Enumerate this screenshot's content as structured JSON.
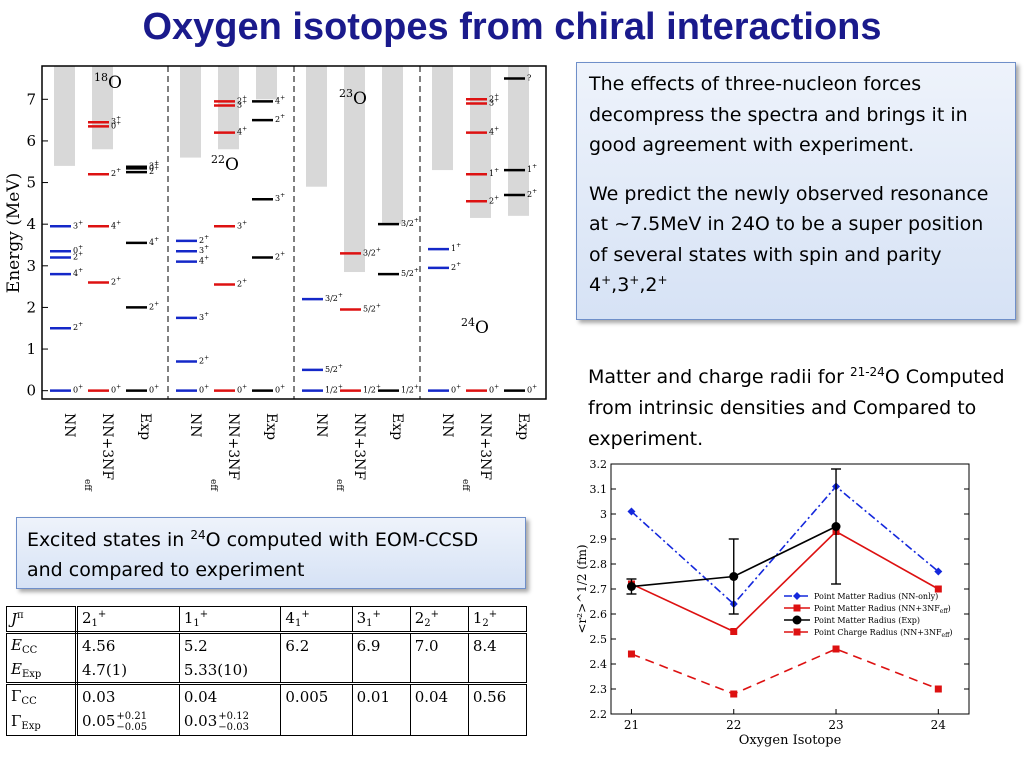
{
  "title": "Oxygen isotopes from chiral interactions",
  "box1": {
    "p1": "The effects of three-nucleon forces decompress the spectra and brings it in good agreement with experiment.",
    "p2_pre": "We predict the newly observed resonance at ~7.5MeV in 24O to be a super position of several states with spin and parity 4",
    "p2_mid1": ",3",
    "p2_mid2": ",2",
    "p2_sup": "+"
  },
  "radii_text": {
    "pre": "Matter and charge radii for ",
    "sup": "21-24",
    "post": "O Computed from intrinsic densities and Compared to experiment."
  },
  "box2": {
    "pre": "Excited states in ",
    "sup": "24",
    "post": "O computed with EOM-CCSD and compared to experiment"
  },
  "table": {
    "header": {
      "label": "J",
      "label_sup": "π",
      "cols": [
        [
          "2",
          "1",
          "+"
        ],
        [
          "1",
          "1",
          "+"
        ],
        [
          "4",
          "1",
          "+"
        ],
        [
          "3",
          "1",
          "+"
        ],
        [
          "2",
          "2",
          "+"
        ],
        [
          "1",
          "2",
          "+"
        ]
      ]
    },
    "ecc": {
      "label": "E",
      "sub": "CC",
      "values": [
        "4.56",
        "5.2",
        "6.2",
        "6.9",
        "7.0",
        "8.4"
      ]
    },
    "eexp": {
      "label": "E",
      "sub": "Exp",
      "values": [
        "4.7(1)",
        "5.33(10)",
        "",
        "",
        "",
        ""
      ]
    },
    "gcc": {
      "label": "Γ",
      "sub": "CC",
      "values": [
        "0.03",
        "0.04",
        "0.005",
        "0.01",
        "0.04",
        "0.56"
      ]
    },
    "gexp": {
      "label": "Γ",
      "sub": "Exp",
      "values": [
        [
          "0.05",
          "+0.21",
          "−0.05"
        ],
        [
          "0.03",
          "+0.12",
          "−0.03"
        ],
        [
          "",
          "",
          ""
        ],
        [
          "",
          "",
          ""
        ],
        [
          "",
          "",
          ""
        ],
        [
          "",
          "",
          ""
        ]
      ]
    }
  },
  "colors": {
    "title": "#1a1a8c",
    "nn": "#1428c8",
    "nn3nf": "#dd1111",
    "exp": "#000000",
    "band": "#d8d8d8",
    "nnonly": "#1428dc",
    "radius_red": "#dd1111"
  },
  "chart_data": [
    {
      "type": "level-scheme",
      "ylabel": "Energy (MeV)",
      "ylim": [
        -0.2,
        7.8
      ],
      "yticks": [
        0,
        1,
        2,
        3,
        4,
        5,
        6,
        7
      ],
      "panels": [
        {
          "isotope": "18",
          "element": "O",
          "columns": [
            {
              "name": "NN",
              "color": "nn",
              "band": [
                5.4,
                7.8
              ],
              "levels": [
                [
                  0,
                  "0+"
                ],
                [
                  1.5,
                  "2+"
                ],
                [
                  2.8,
                  "4+"
                ],
                [
                  3.2,
                  "2+"
                ],
                [
                  3.35,
                  "0+"
                ],
                [
                  3.95,
                  "3+"
                ]
              ]
            },
            {
              "name": "NN+3NF",
              "sub": "eff",
              "color": "nn3nf",
              "band": [
                5.8,
                7.8
              ],
              "levels": [
                [
                  0,
                  "0+"
                ],
                [
                  2.6,
                  "2+"
                ],
                [
                  3.95,
                  "4+"
                ],
                [
                  5.2,
                  "2+"
                ],
                [
                  6.35,
                  "0+"
                ],
                [
                  6.45,
                  "3+"
                ]
              ]
            },
            {
              "name": "Exp",
              "color": "exp",
              "levels": [
                [
                  0,
                  "0+"
                ],
                [
                  2.0,
                  "2+"
                ],
                [
                  3.55,
                  "4+"
                ],
                [
                  5.25,
                  "2+"
                ],
                [
                  5.34,
                  "0+"
                ],
                [
                  5.38,
                  "3+"
                ]
              ]
            }
          ]
        },
        {
          "isotope": "22",
          "element": "O",
          "columns": [
            {
              "name": "NN",
              "color": "nn",
              "band": [
                5.6,
                7.8
              ],
              "levels": [
                [
                  0,
                  "0+"
                ],
                [
                  0.7,
                  "2+"
                ],
                [
                  1.75,
                  "3+"
                ],
                [
                  3.1,
                  "4+"
                ],
                [
                  3.35,
                  "3+"
                ],
                [
                  3.6,
                  "2+"
                ]
              ]
            },
            {
              "name": "NN+3NF",
              "sub": "eff",
              "color": "nn3nf",
              "band": [
                5.8,
                7.8
              ],
              "levels": [
                [
                  0,
                  "0+"
                ],
                [
                  2.55,
                  "2+"
                ],
                [
                  3.95,
                  "3+"
                ],
                [
                  6.2,
                  "4+"
                ],
                [
                  6.85,
                  "3+"
                ],
                [
                  6.95,
                  "2+"
                ]
              ]
            },
            {
              "name": "Exp",
              "color": "exp",
              "band": [
                7.0,
                7.8
              ],
              "levels": [
                [
                  0,
                  "0+"
                ],
                [
                  3.2,
                  "2+"
                ],
                [
                  4.6,
                  "3+"
                ],
                [
                  6.5,
                  "2+"
                ],
                [
                  6.95,
                  "4+"
                ]
              ]
            }
          ]
        },
        {
          "isotope": "23",
          "element": "O",
          "columns": [
            {
              "name": "NN",
              "color": "nn",
              "band": [
                4.9,
                7.8
              ],
              "levels": [
                [
                  0,
                  "1/2+"
                ],
                [
                  0.5,
                  "5/2+"
                ],
                [
                  2.2,
                  "3/2+"
                ]
              ]
            },
            {
              "name": "NN+3NF",
              "sub": "eff",
              "color": "nn3nf",
              "band": [
                2.85,
                7.8
              ],
              "levels": [
                [
                  0,
                  "1/2+"
                ],
                [
                  1.95,
                  "5/2+"
                ],
                [
                  3.3,
                  "3/2+"
                ]
              ]
            },
            {
              "name": "Exp",
              "color": "exp",
              "band": [
                4.0,
                7.8
              ],
              "levels": [
                [
                  0,
                  "1/2+"
                ],
                [
                  2.8,
                  "5/2+"
                ],
                [
                  4.0,
                  "3/2+"
                ]
              ]
            }
          ]
        },
        {
          "isotope": "24",
          "element": "O",
          "columns": [
            {
              "name": "NN",
              "color": "nn",
              "band": [
                5.3,
                7.8
              ],
              "levels": [
                [
                  0,
                  "0+"
                ],
                [
                  2.95,
                  "2+"
                ],
                [
                  3.4,
                  "1+"
                ]
              ]
            },
            {
              "name": "NN+3NF",
              "sub": "eff",
              "color": "nn3nf",
              "band": [
                4.15,
                7.8
              ],
              "levels": [
                [
                  0,
                  "0+"
                ],
                [
                  4.55,
                  "2+"
                ],
                [
                  5.2,
                  "1+"
                ],
                [
                  6.2,
                  "4+"
                ],
                [
                  6.9,
                  "3+"
                ],
                [
                  7.0,
                  "2+"
                ]
              ]
            },
            {
              "name": "Exp",
              "color": "exp",
              "band": [
                4.2,
                7.8
              ],
              "levels": [
                [
                  0,
                  "0+"
                ],
                [
                  4.7,
                  "2+"
                ],
                [
                  5.3,
                  "1+"
                ],
                [
                  7.5,
                  "?"
                ]
              ]
            }
          ]
        }
      ]
    },
    {
      "type": "line",
      "xlabel": "Oxygen Isotope",
      "ylabel": "<r²>^1/2 (fm)",
      "x": [
        21,
        22,
        23,
        24
      ],
      "ylim": [
        2.2,
        3.2
      ],
      "yticks": [
        "2.2",
        "2.3",
        "2.4",
        "2.5",
        "2.6",
        "2.7",
        "2.8",
        "2.9",
        "3",
        "3.1",
        "3.2"
      ],
      "legend_position": "lower-right",
      "series": [
        {
          "name": "Point Matter Radius (NN-only)",
          "color": "nnonly",
          "dash": "8 3 2 3",
          "marker": "diamond",
          "y": [
            3.01,
            2.64,
            3.11,
            2.77
          ]
        },
        {
          "name": "Point Matter Radius (NN+3NF",
          "name_sub": "eff",
          "name_end": ")",
          "color": "radius_red",
          "dash": "",
          "marker": "square",
          "y": [
            2.72,
            2.53,
            2.93,
            2.7
          ]
        },
        {
          "name": "Point Matter Radius (Exp)",
          "color": "exp",
          "dash": "",
          "marker": "circle",
          "y": [
            2.71,
            2.75,
            2.95,
            null
          ],
          "err": [
            0.03,
            0.15,
            0.23,
            null
          ]
        },
        {
          "name": "Point Charge Radius (NN+3NF",
          "name_sub": "eff",
          "name_end": ")",
          "color": "radius_red",
          "dash": "9 6",
          "marker": "square",
          "y": [
            2.44,
            2.28,
            2.46,
            2.3
          ]
        }
      ]
    }
  ]
}
